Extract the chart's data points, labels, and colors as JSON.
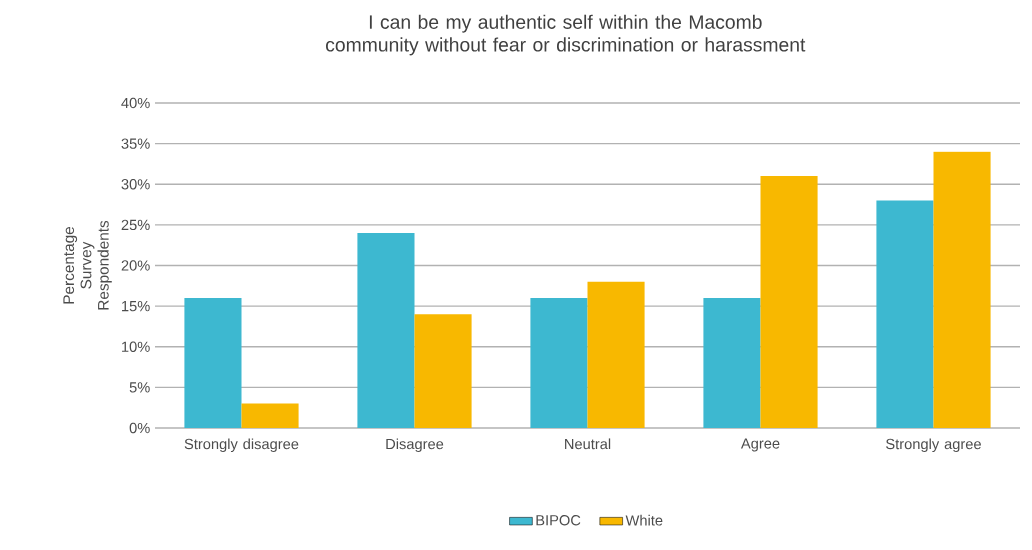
{
  "chart_data": {
    "type": "bar",
    "title": "I can be my authentic self within the Macomb community without fear or discrimination or harassment",
    "ylabel": "Percentage Survey Respondents",
    "categories": [
      "Strongly disagree",
      "Disagree",
      "Neutral",
      "Agree",
      "Strongly agree"
    ],
    "series": [
      {
        "name": "BIPOC",
        "color": "#3db8d0",
        "values": [
          16,
          24,
          16,
          16,
          28
        ]
      },
      {
        "name": "White",
        "color": "#f8b800",
        "values": [
          3,
          14,
          18,
          31,
          34
        ]
      }
    ],
    "ylim": [
      0,
      40
    ],
    "yticks": [
      {
        "value": 0,
        "label": "0%"
      },
      {
        "value": 5,
        "label": "5%"
      },
      {
        "value": 10,
        "label": "10%"
      },
      {
        "value": 15,
        "label": "15%"
      },
      {
        "value": 20,
        "label": "20%"
      },
      {
        "value": 25,
        "label": "25%"
      },
      {
        "value": 30,
        "label": "30%"
      },
      {
        "value": 35,
        "label": "35%"
      },
      {
        "value": 40,
        "label": "40%"
      }
    ],
    "grid": "y",
    "legend": "bottom"
  }
}
